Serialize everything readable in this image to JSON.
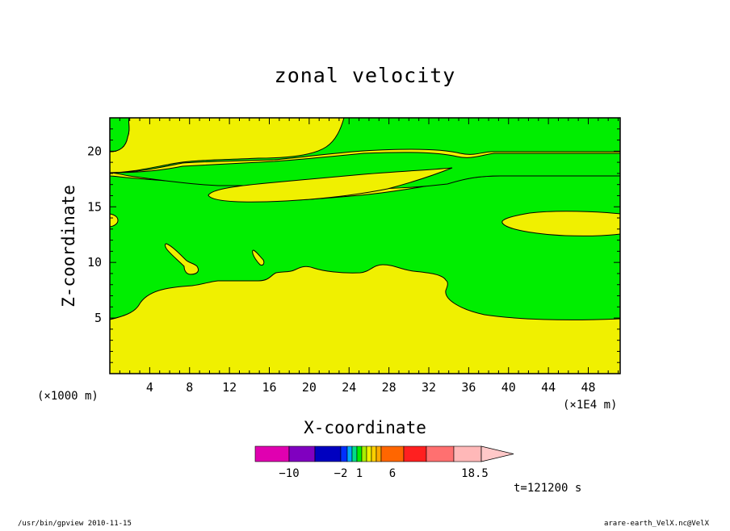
{
  "chart_data": {
    "type": "contour",
    "title": "zonal velocity",
    "xlabel": "X-coordinate",
    "ylabel": "Z-coordinate",
    "x_unit": "(×1E4 m)",
    "y_unit": "(×1000 m)",
    "xlim": [
      0,
      51.2
    ],
    "ylim": [
      0,
      23
    ],
    "x_ticks": [
      4,
      8,
      12,
      16,
      20,
      24,
      28,
      32,
      36,
      40,
      44,
      48
    ],
    "x_tick_labels": [
      "4",
      "8",
      "12",
      "16",
      "20",
      "24",
      "28",
      "32",
      "36",
      "40",
      "44",
      "48"
    ],
    "y_ticks": [
      5,
      10,
      15,
      20
    ],
    "y_tick_labels": [
      "5",
      "10",
      "15",
      "20"
    ],
    "fill_colors": {
      "background": "#00ee00",
      "region": "#f0f000"
    },
    "colorbar": {
      "boundaries": [
        -10,
        -2,
        1,
        6,
        18.5
      ],
      "labels": [
        "−10",
        "−2",
        "1",
        "6",
        "18.5"
      ],
      "colors": [
        "#e000b0",
        "#8000c0",
        "#0000c0",
        "#0030ff",
        "#00aaff",
        "#00dd88",
        "#00ee00",
        "#aaee00",
        "#f0f000",
        "#ffd000",
        "#ffaa00",
        "#ff6600",
        "#ff2020",
        "#ff7070",
        "#ffb8b8",
        "#ffc8c8"
      ]
    },
    "annotation": "t=121200 s"
  },
  "footer": {
    "left": "/usr/bin/gpview   2010-11-15",
    "right": "arare-earth_VelX.nc@VelX"
  }
}
